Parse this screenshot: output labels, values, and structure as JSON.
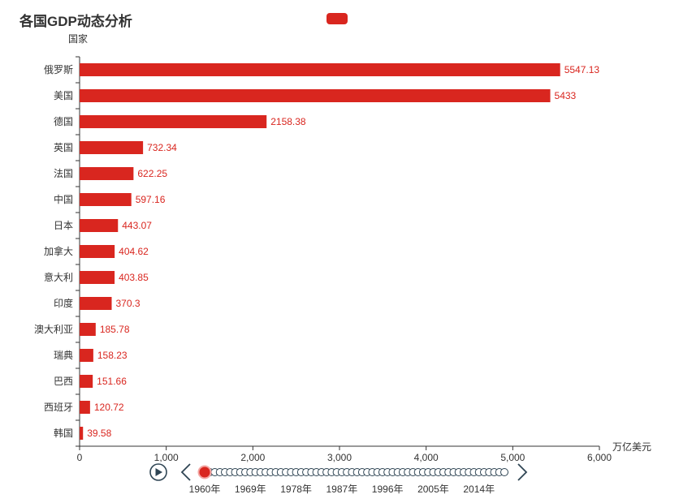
{
  "colors": {
    "bar": "#d9261f",
    "axis": "#333333",
    "timeline": "#2f4554"
  },
  "timeline": {
    "labels": [
      "1960年",
      "1969年",
      "1978年",
      "1987年",
      "1996年",
      "2005年",
      "2014年"
    ],
    "current_index": 0,
    "total": 60
  },
  "chart_data": {
    "type": "bar",
    "orientation": "horizontal",
    "title": "各国GDP动态分析",
    "ylabel": "国家",
    "xlabel": "万亿美元",
    "xlim": [
      0,
      6000
    ],
    "xticks": [
      "0",
      "1,000",
      "2,000",
      "3,000",
      "4,000",
      "5,000",
      "6,000"
    ],
    "legend": {
      "position": "top-center",
      "entries": [
        ""
      ]
    },
    "grid": false,
    "categories": [
      "俄罗斯",
      "美国",
      "德国",
      "英国",
      "法国",
      "中国",
      "日本",
      "加拿大",
      "意大利",
      "印度",
      "澳大利亚",
      "瑞典",
      "巴西",
      "西班牙",
      "韩国"
    ],
    "values": [
      5547.13,
      5433,
      2158.38,
      732.34,
      622.25,
      597.16,
      443.07,
      404.62,
      403.85,
      370.3,
      185.78,
      158.23,
      151.66,
      120.72,
      39.58
    ],
    "value_labels": [
      "5547.13",
      "5433",
      "2158.38",
      "732.34",
      "622.25",
      "597.16",
      "443.07",
      "404.62",
      "403.85",
      "370.3",
      "185.78",
      "158.23",
      "151.66",
      "120.72",
      "39.58"
    ]
  }
}
